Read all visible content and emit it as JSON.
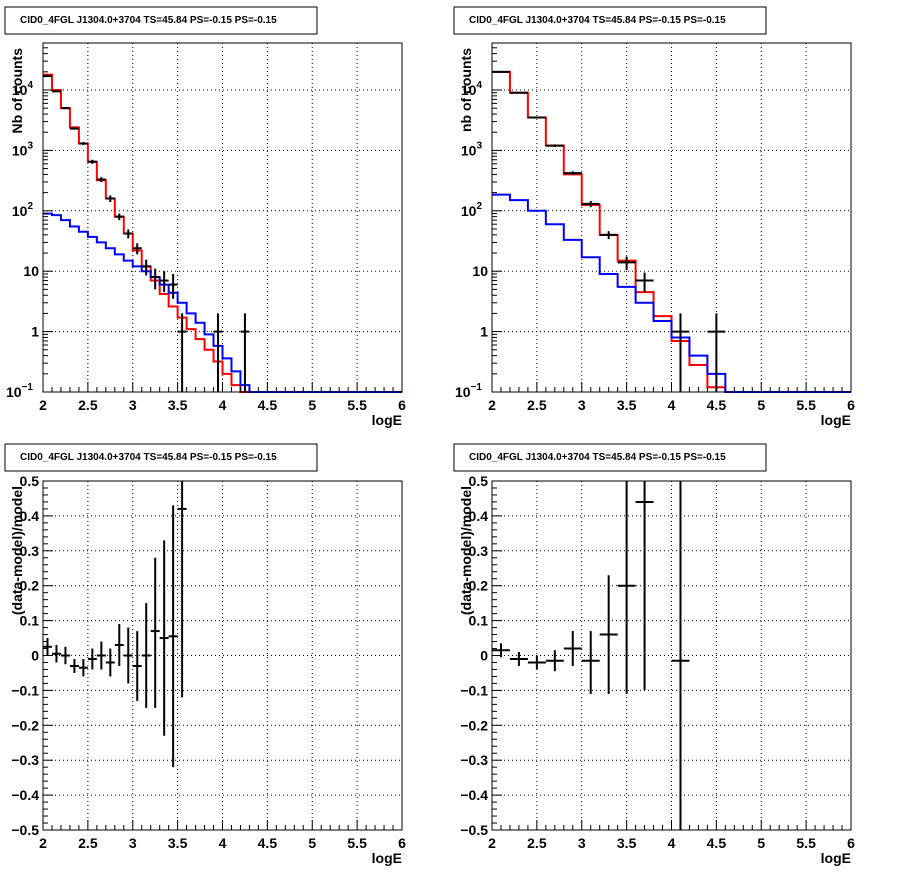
{
  "chart_data": [
    {
      "type": "histogram",
      "title": "CID0_4FGL J1304.0+3704 TS=45.84 PS=-0.15 PS=-0.15",
      "xlabel": "logE",
      "ylabel": "Nb of counts",
      "xlim": [
        2,
        6
      ],
      "ylim": [
        0.1,
        60000
      ],
      "yscale": "log",
      "grid": true,
      "xticks": [
        "2",
        "2.5",
        "3",
        "3.5",
        "4",
        "4.5",
        "5",
        "5.5",
        "6"
      ],
      "yticks": [
        {
          "v": 0.1,
          "base": "10",
          "exp": "−1"
        },
        {
          "v": 1,
          "label": "1"
        },
        {
          "v": 10,
          "label": "10"
        },
        {
          "v": 100,
          "base": "10",
          "exp": "2"
        },
        {
          "v": 1000,
          "base": "10",
          "exp": "3"
        },
        {
          "v": 10000,
          "base": "10",
          "exp": "4"
        }
      ],
      "bin_width": 0.1,
      "series": [
        {
          "color": "#ff0000",
          "x_start": 2.0,
          "values": [
            18000,
            10000,
            5000,
            2400,
            1300,
            650,
            320,
            160,
            80,
            42,
            22,
            12,
            7,
            4.2,
            2.6,
            1.7,
            1.1,
            0.75,
            0.5,
            0.32,
            0.2,
            0.13,
            0.1,
            0.1,
            0.1,
            0.1,
            0.1,
            0.1,
            0.1,
            0.1,
            0.1,
            0.1,
            0.1,
            0.1,
            0.1,
            0.1,
            0.1,
            0.1,
            0.1,
            0.1
          ]
        },
        {
          "color": "#0000ff",
          "x_start": 2.0,
          "values": [
            90,
            85,
            70,
            55,
            45,
            37,
            30,
            24,
            19,
            15,
            12,
            10,
            8,
            6,
            4.4,
            3,
            2,
            1.4,
            0.9,
            0.58,
            0.36,
            0.22,
            0.13,
            0.1,
            0.1,
            0.1,
            0.1,
            0.1,
            0.1,
            0.1,
            0.1,
            0.1,
            0.1,
            0.1,
            0.1,
            0.1,
            0.1,
            0.1,
            0.1,
            0.1
          ]
        }
      ],
      "points": [
        {
          "x": 2.05,
          "y": 17000,
          "lo": 16700,
          "hi": 17300
        },
        {
          "x": 2.15,
          "y": 9500,
          "lo": 9300,
          "hi": 9700
        },
        {
          "x": 2.25,
          "y": 5000,
          "lo": 4860,
          "hi": 5140
        },
        {
          "x": 2.35,
          "y": 2300,
          "lo": 2200,
          "hi": 2400
        },
        {
          "x": 2.45,
          "y": 1300,
          "lo": 1230,
          "hi": 1370
        },
        {
          "x": 2.55,
          "y": 650,
          "lo": 600,
          "hi": 700
        },
        {
          "x": 2.65,
          "y": 330,
          "lo": 300,
          "hi": 360
        },
        {
          "x": 2.75,
          "y": 160,
          "lo": 140,
          "hi": 180
        },
        {
          "x": 2.85,
          "y": 80,
          "lo": 70,
          "hi": 90
        },
        {
          "x": 2.95,
          "y": 42,
          "lo": 35,
          "hi": 49
        },
        {
          "x": 3.05,
          "y": 24,
          "lo": 19,
          "hi": 29
        },
        {
          "x": 3.15,
          "y": 12,
          "lo": 8.5,
          "hi": 15.5
        },
        {
          "x": 3.25,
          "y": 8,
          "lo": 5,
          "hi": 11
        },
        {
          "x": 3.35,
          "y": 7,
          "lo": 4.5,
          "hi": 10
        },
        {
          "x": 3.45,
          "y": 6,
          "lo": 3.5,
          "hi": 9
        },
        {
          "x": 3.55,
          "y": 1,
          "lo": 0.1,
          "hi": 2
        },
        {
          "x": 3.95,
          "y": 1,
          "lo": 0.1,
          "hi": 2
        },
        {
          "x": 4.25,
          "y": 1,
          "lo": 0.1,
          "hi": 2
        }
      ]
    },
    {
      "type": "histogram",
      "title": "CID0_4FGL J1304.0+3704 TS=45.84 PS=-0.15 PS=-0.15",
      "xlabel": "logE",
      "ylabel": "nb of counts",
      "xlim": [
        2,
        6
      ],
      "ylim": [
        0.1,
        60000
      ],
      "yscale": "log",
      "grid": true,
      "xticks": [
        "2",
        "2.5",
        "3",
        "3.5",
        "4",
        "4.5",
        "5",
        "5.5",
        "6"
      ],
      "yticks": [
        {
          "v": 0.1,
          "base": "10",
          "exp": "−1"
        },
        {
          "v": 1,
          "label": "1"
        },
        {
          "v": 10,
          "label": "10"
        },
        {
          "v": 100,
          "base": "10",
          "exp": "2"
        },
        {
          "v": 1000,
          "base": "10",
          "exp": "3"
        },
        {
          "v": 10000,
          "base": "10",
          "exp": "4"
        }
      ],
      "bin_width": 0.2,
      "series": [
        {
          "color": "#ff0000",
          "x_start": 2.0,
          "values": [
            20000,
            9000,
            3500,
            1200,
            400,
            125,
            40,
            15,
            4.5,
            1.8,
            0.7,
            0.28,
            0.12,
            0.1,
            0.1,
            0.1,
            0.1,
            0.1,
            0.1,
            0.1
          ]
        },
        {
          "color": "#0000ff",
          "x_start": 2.0,
          "values": [
            185,
            150,
            100,
            60,
            33,
            17,
            9,
            5.5,
            3,
            1.5,
            0.8,
            0.4,
            0.2,
            0.1,
            0.1,
            0.1,
            0.1,
            0.1,
            0.1,
            0.1
          ]
        }
      ],
      "points": [
        {
          "x": 2.1,
          "y": 20000,
          "lo": 19800,
          "hi": 20200
        },
        {
          "x": 2.3,
          "y": 9000,
          "lo": 8850,
          "hi": 9150
        },
        {
          "x": 2.5,
          "y": 3500,
          "lo": 3400,
          "hi": 3600
        },
        {
          "x": 2.7,
          "y": 1200,
          "lo": 1140,
          "hi": 1260
        },
        {
          "x": 2.9,
          "y": 420,
          "lo": 390,
          "hi": 450
        },
        {
          "x": 3.1,
          "y": 130,
          "lo": 115,
          "hi": 145
        },
        {
          "x": 3.3,
          "y": 40,
          "lo": 34,
          "hi": 46
        },
        {
          "x": 3.5,
          "y": 14,
          "lo": 10.5,
          "hi": 17.5
        },
        {
          "x": 3.7,
          "y": 7,
          "lo": 4.5,
          "hi": 9.5
        },
        {
          "x": 4.1,
          "y": 1,
          "lo": 0.1,
          "hi": 2
        },
        {
          "x": 4.5,
          "y": 1,
          "lo": 0.1,
          "hi": 2
        }
      ]
    },
    {
      "type": "scatter",
      "title": "CID0_4FGL J1304.0+3704 TS=45.84 PS=-0.15 PS=-0.15",
      "xlabel": "logE",
      "ylabel": "(data-model)/model",
      "xlim": [
        2,
        6
      ],
      "ylim": [
        -0.5,
        0.5
      ],
      "yscale": "linear",
      "grid": true,
      "xticks": [
        "2",
        "2.5",
        "3",
        "3.5",
        "4",
        "4.5",
        "5",
        "5.5",
        "6"
      ],
      "yticks": [
        {
          "v": -0.5,
          "label": "−0.5"
        },
        {
          "v": -0.4,
          "label": "−0.4"
        },
        {
          "v": -0.3,
          "label": "−0.3"
        },
        {
          "v": -0.2,
          "label": "−0.2"
        },
        {
          "v": -0.1,
          "label": "−0.1"
        },
        {
          "v": 0,
          "label": "0"
        },
        {
          "v": 0.1,
          "label": "0.1"
        },
        {
          "v": 0.2,
          "label": "0.2"
        },
        {
          "v": 0.3,
          "label": "0.3"
        },
        {
          "v": 0.4,
          "label": "0.4"
        },
        {
          "v": 0.5,
          "label": "0.5"
        }
      ],
      "x_halfwidth": 0.05,
      "points": [
        {
          "x": 2.05,
          "y": 0.025,
          "lo": 0.0,
          "hi": 0.05
        },
        {
          "x": 2.15,
          "y": 0.005,
          "lo": -0.02,
          "hi": 0.03
        },
        {
          "x": 2.25,
          "y": 0.0,
          "lo": -0.025,
          "hi": 0.025
        },
        {
          "x": 2.35,
          "y": -0.03,
          "lo": -0.05,
          "hi": -0.01
        },
        {
          "x": 2.45,
          "y": -0.035,
          "lo": -0.06,
          "hi": -0.01
        },
        {
          "x": 2.55,
          "y": -0.01,
          "lo": -0.04,
          "hi": 0.02
        },
        {
          "x": 2.65,
          "y": 0.0,
          "lo": -0.04,
          "hi": 0.04
        },
        {
          "x": 2.75,
          "y": -0.02,
          "lo": -0.06,
          "hi": 0.02
        },
        {
          "x": 2.85,
          "y": 0.03,
          "lo": -0.03,
          "hi": 0.09
        },
        {
          "x": 2.95,
          "y": 0.0,
          "lo": -0.08,
          "hi": 0.08
        },
        {
          "x": 3.05,
          "y": -0.03,
          "lo": -0.13,
          "hi": 0.07
        },
        {
          "x": 3.15,
          "y": 0.0,
          "lo": -0.15,
          "hi": 0.15
        },
        {
          "x": 3.25,
          "y": 0.07,
          "lo": -0.15,
          "hi": 0.28
        },
        {
          "x": 3.35,
          "y": 0.05,
          "lo": -0.23,
          "hi": 0.33
        },
        {
          "x": 3.45,
          "y": 0.055,
          "lo": -0.32,
          "hi": 0.43
        },
        {
          "x": 3.55,
          "y": 0.42,
          "lo": -0.12,
          "hi": 0.5
        }
      ]
    },
    {
      "type": "scatter",
      "title": "CID0_4FGL J1304.0+3704 TS=45.84 PS=-0.15 PS=-0.15",
      "xlabel": "logE",
      "ylabel": "(data-model)/model",
      "xlim": [
        2,
        6
      ],
      "ylim": [
        -0.5,
        0.5
      ],
      "yscale": "linear",
      "grid": true,
      "xticks": [
        "2",
        "2.5",
        "3",
        "3.5",
        "4",
        "4.5",
        "5",
        "5.5",
        "6"
      ],
      "yticks": [
        {
          "v": -0.5,
          "label": "−0.5"
        },
        {
          "v": -0.4,
          "label": "−0.4"
        },
        {
          "v": -0.3,
          "label": "−0.3"
        },
        {
          "v": -0.2,
          "label": "−0.2"
        },
        {
          "v": -0.1,
          "label": "−0.1"
        },
        {
          "v": 0,
          "label": "0"
        },
        {
          "v": 0.1,
          "label": "0.1"
        },
        {
          "v": 0.2,
          "label": "0.2"
        },
        {
          "v": 0.3,
          "label": "0.3"
        },
        {
          "v": 0.4,
          "label": "0.4"
        },
        {
          "v": 0.5,
          "label": "0.5"
        }
      ],
      "x_halfwidth": 0.1,
      "points": [
        {
          "x": 2.1,
          "y": 0.015,
          "lo": -0.005,
          "hi": 0.035
        },
        {
          "x": 2.3,
          "y": -0.01,
          "lo": -0.03,
          "hi": 0.01
        },
        {
          "x": 2.5,
          "y": -0.02,
          "lo": -0.04,
          "hi": 0.0
        },
        {
          "x": 2.7,
          "y": -0.015,
          "lo": -0.045,
          "hi": 0.015
        },
        {
          "x": 2.9,
          "y": 0.02,
          "lo": -0.03,
          "hi": 0.07
        },
        {
          "x": 3.1,
          "y": -0.015,
          "lo": -0.11,
          "hi": 0.07
        },
        {
          "x": 3.3,
          "y": 0.06,
          "lo": -0.11,
          "hi": 0.23
        },
        {
          "x": 3.5,
          "y": 0.2,
          "lo": -0.11,
          "hi": 0.5
        },
        {
          "x": 3.7,
          "y": 0.44,
          "lo": -0.1,
          "hi": 0.5
        },
        {
          "x": 4.1,
          "y": -0.015,
          "lo": -0.5,
          "hi": 0.5
        }
      ]
    }
  ]
}
